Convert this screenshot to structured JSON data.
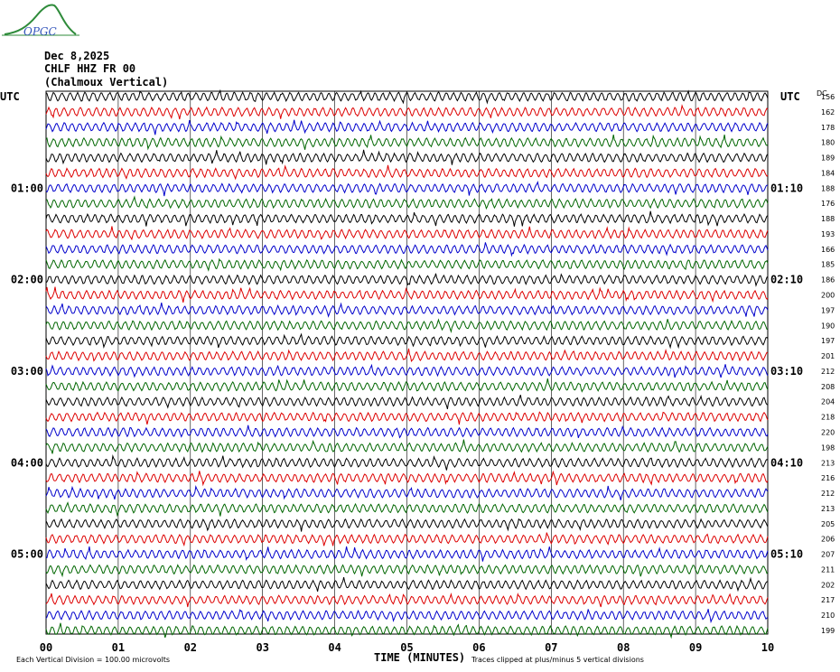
{
  "logo": {
    "text": "OPGC"
  },
  "header": {
    "date": "Dec 8,2025",
    "station": "CHLF HHZ FR 00",
    "location": "(Chalmoux Vertical)"
  },
  "left_axis_label": "UTC",
  "right_axis_label": "UTC",
  "right_col_header": "DC",
  "footer": {
    "scale_note": "Each Vertical Division =  100.00 microvolts",
    "clip_note": "Traces clipped at plus/minus 5 vertical divisions"
  },
  "chart_data": {
    "type": "line",
    "title": "Dec 8,2025 CHLF HHZ FR 00 (Chalmoux Vertical)",
    "xlabel": "TIME (MINUTES)",
    "xlim": [
      0,
      10
    ],
    "x_ticks": [
      "00",
      "01",
      "02",
      "03",
      "04",
      "05",
      "06",
      "07",
      "08",
      "09",
      "10"
    ],
    "trace_colors": [
      "#000000",
      "#dd0000",
      "#0000cc",
      "#006600"
    ],
    "left_time_labels": [
      {
        "label": "01:00",
        "row": 6
      },
      {
        "label": "02:00",
        "row": 12
      },
      {
        "label": "03:00",
        "row": 18
      },
      {
        "label": "04:00",
        "row": 24
      },
      {
        "label": "05:00",
        "row": 30
      }
    ],
    "right_time_labels": [
      {
        "label": "01:10",
        "row": 6
      },
      {
        "label": "02:10",
        "row": 12
      },
      {
        "label": "03:10",
        "row": 18
      },
      {
        "label": "04:10",
        "row": 24
      },
      {
        "label": "05:10",
        "row": 30
      }
    ],
    "rows": 36,
    "dc_offsets": [
      156,
      162,
      178,
      180,
      189,
      184,
      188,
      176,
      188,
      193,
      166,
      185,
      186,
      200,
      197,
      190,
      197,
      201,
      212,
      208,
      204,
      218,
      220,
      198,
      213,
      216,
      212,
      213,
      205,
      206,
      207,
      211,
      202,
      217,
      210,
      199
    ],
    "grid": true
  }
}
